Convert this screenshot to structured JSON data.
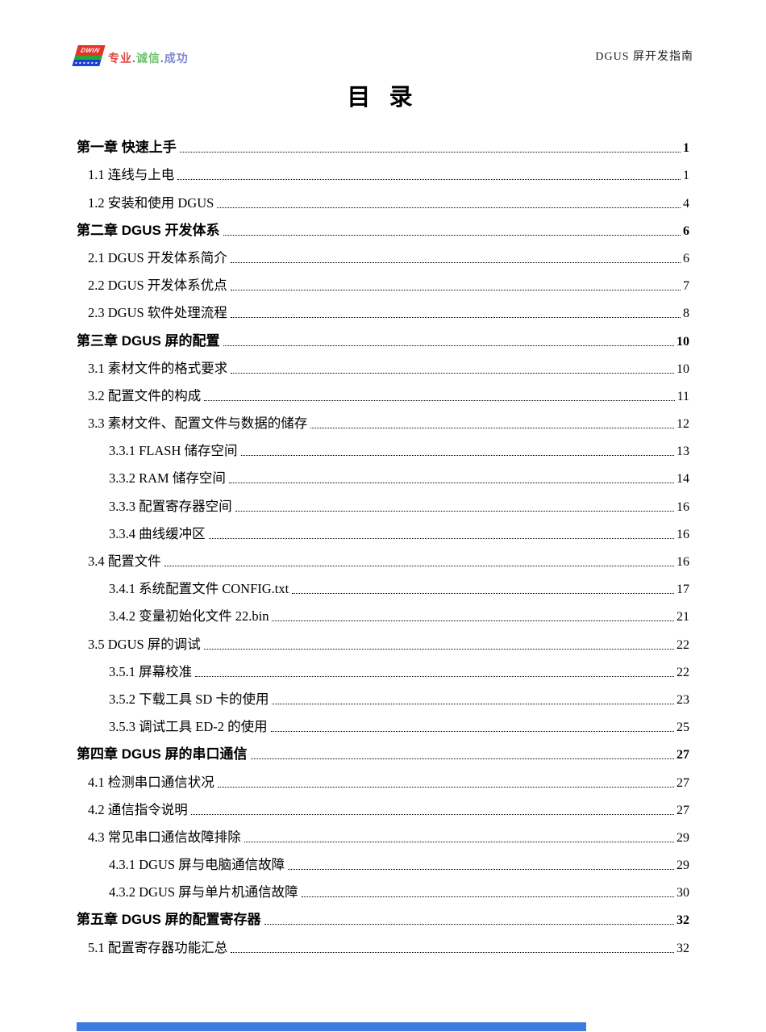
{
  "header": {
    "logo": {
      "text": "DWIN",
      "stripe_colors": {
        "red": "#e3342c",
        "green": "#27a737",
        "blue": "#1741d8"
      },
      "slogan_parts": [
        {
          "text": "专业",
          "color": "#e0453f"
        },
        {
          "text": ".",
          "color": "#6d6d6d"
        },
        {
          "text": "诚信",
          "color": "#6abf69"
        },
        {
          "text": ".",
          "color": "#6d6d6d"
        },
        {
          "text": "成功",
          "color": "#7f86d2"
        }
      ]
    },
    "doc_title": "DGUS 屏开发指南"
  },
  "page_title": "目 录",
  "toc": {
    "entries": [
      {
        "level": 0,
        "label": "第一章 快速上手",
        "page": "1"
      },
      {
        "level": 1,
        "label": "1.1 连线与上电",
        "page": "1"
      },
      {
        "level": 1,
        "label": "1.2 安装和使用 DGUS",
        "page": "4"
      },
      {
        "level": 0,
        "label": "第二章 DGUS 开发体系",
        "page": "6"
      },
      {
        "level": 1,
        "label": "2.1 DGUS 开发体系简介",
        "page": "6"
      },
      {
        "level": 1,
        "label": "2.2 DGUS 开发体系优点",
        "page": "7"
      },
      {
        "level": 1,
        "label": "2.3 DGUS 软件处理流程",
        "page": "8"
      },
      {
        "level": 0,
        "label": "第三章 DGUS 屏的配置",
        "page": "10"
      },
      {
        "level": 1,
        "label": "3.1 素材文件的格式要求",
        "page": "10"
      },
      {
        "level": 1,
        "label": "3.2 配置文件的构成",
        "page": "11"
      },
      {
        "level": 1,
        "label": "3.3 素材文件、配置文件与数据的储存",
        "page": "12"
      },
      {
        "level": 2,
        "label": "3.3.1 FLASH 储存空间",
        "page": "13"
      },
      {
        "level": 2,
        "label": "3.3.2 RAM 储存空间",
        "page": "14"
      },
      {
        "level": 2,
        "label": "3.3.3 配置寄存器空间",
        "page": "16"
      },
      {
        "level": 2,
        "label": "3.3.4 曲线缓冲区",
        "page": "16"
      },
      {
        "level": 1,
        "label": "3.4 配置文件",
        "page": "16"
      },
      {
        "level": 2,
        "label": "3.4.1 系统配置文件 CONFIG.txt",
        "page": "17"
      },
      {
        "level": 2,
        "label": "3.4.2 变量初始化文件 22.bin",
        "page": "21"
      },
      {
        "level": 1,
        "label": "3.5 DGUS 屏的调试",
        "page": "22"
      },
      {
        "level": 2,
        "label": "3.5.1 屏幕校准",
        "page": "22"
      },
      {
        "level": 2,
        "label": "3.5.2 下载工具 SD 卡的使用",
        "page": "23"
      },
      {
        "level": 2,
        "label": "3.5.3 调试工具 ED-2 的使用",
        "page": "25"
      },
      {
        "level": 0,
        "label": "第四章 DGUS 屏的串口通信",
        "page": "27"
      },
      {
        "level": 1,
        "label": "4.1 检测串口通信状况",
        "page": "27"
      },
      {
        "level": 1,
        "label": "4.2 通信指令说明",
        "page": "27"
      },
      {
        "level": 1,
        "label": "4.3 常见串口通信故障排除",
        "page": "29"
      },
      {
        "level": 2,
        "label": "4.3.1 DGUS 屏与电脑通信故障",
        "page": "29"
      },
      {
        "level": 2,
        "label": "4.3.2 DGUS 屏与单片机通信故障",
        "page": "30"
      },
      {
        "level": 0,
        "label": "第五章 DGUS 屏的配置寄存器",
        "page": "32"
      },
      {
        "level": 1,
        "label": "5.1 配置寄存器功能汇总",
        "page": "32"
      }
    ]
  },
  "selection_bar": {
    "color": "#3b7be0"
  }
}
